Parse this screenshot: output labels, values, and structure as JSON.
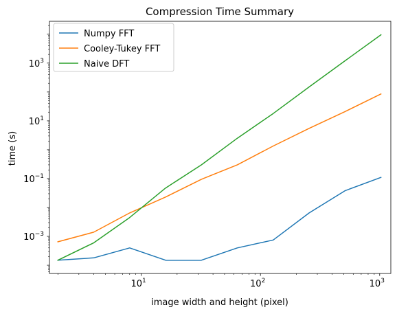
{
  "chart_data": {
    "type": "line",
    "title": "Compression Time Summary",
    "xlabel": "image width and height (pixel)",
    "ylabel": "time (s)",
    "xscale": "log",
    "yscale": "log",
    "xlim": [
      1.7,
      1240
    ],
    "ylim": [
      5.2e-05,
      28000
    ],
    "grid": false,
    "legend_position": "top-left",
    "x": [
      2,
      4,
      8,
      16,
      32,
      64,
      128,
      256,
      512,
      1024
    ],
    "x_ticks": [
      {
        "value": 10,
        "base": "10",
        "exp": "1"
      },
      {
        "value": 100,
        "base": "10",
        "exp": "2"
      },
      {
        "value": 1000,
        "base": "10",
        "exp": "3"
      }
    ],
    "y_ticks": [
      {
        "value": 0.001,
        "base": "10",
        "exp": "−3"
      },
      {
        "value": 0.1,
        "base": "10",
        "exp": "−1"
      },
      {
        "value": 10,
        "base": "10",
        "exp": "1"
      },
      {
        "value": 1000,
        "base": "10",
        "exp": "3"
      }
    ],
    "series": [
      {
        "name": "Numpy FFT",
        "color": "#1f77b4",
        "values": [
          0.00015,
          0.00018,
          0.0004,
          0.00015,
          0.00015,
          0.0004,
          0.00075,
          0.0065,
          0.038,
          0.11
        ]
      },
      {
        "name": "Cooley-Tukey FFT",
        "color": "#ff7f0e",
        "values": [
          0.00065,
          0.0014,
          0.0065,
          0.023,
          0.095,
          0.3,
          1.35,
          5.5,
          21,
          85
        ]
      },
      {
        "name": "Naive DFT",
        "color": "#2ca02c",
        "values": [
          0.00015,
          0.0006,
          0.0045,
          0.047,
          0.3,
          2.5,
          18,
          150,
          1200,
          9500
        ]
      }
    ]
  }
}
